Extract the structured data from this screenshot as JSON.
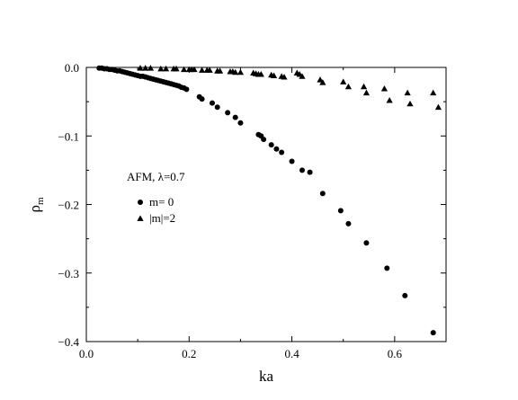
{
  "chart_data": {
    "type": "scatter",
    "title": "",
    "xlabel": "ka",
    "ylabel": "ρ",
    "ylabel_sub": "m",
    "xlim": [
      0.0,
      0.7
    ],
    "ylim": [
      -0.4,
      0.0
    ],
    "x_ticks": [
      0.0,
      0.2,
      0.4,
      0.6
    ],
    "x_tick_labels": [
      "0.0",
      "0.2",
      "0.4",
      "0.6"
    ],
    "y_ticks": [
      0.0,
      -0.1,
      -0.2,
      -0.3,
      -0.4
    ],
    "y_tick_labels": [
      "0.0",
      "−0.1",
      "−0.2",
      "−0.3",
      "−0.4"
    ],
    "grid": false,
    "legend_title": "AFM, λ=0.7",
    "legend_position": "middle-left",
    "series": [
      {
        "name": "m= 0",
        "marker": "circle",
        "color": "#000000",
        "x": [
          0.025,
          0.03,
          0.035,
          0.04,
          0.045,
          0.05,
          0.055,
          0.06,
          0.065,
          0.07,
          0.075,
          0.08,
          0.085,
          0.09,
          0.095,
          0.1,
          0.105,
          0.11,
          0.115,
          0.12,
          0.125,
          0.13,
          0.135,
          0.14,
          0.145,
          0.15,
          0.155,
          0.16,
          0.165,
          0.17,
          0.175,
          0.18,
          0.185,
          0.19,
          0.195,
          0.22,
          0.225,
          0.245,
          0.255,
          0.275,
          0.29,
          0.3,
          0.335,
          0.34,
          0.345,
          0.36,
          0.37,
          0.38,
          0.4,
          0.42,
          0.435,
          0.46,
          0.495,
          0.51,
          0.545,
          0.585,
          0.62,
          0.675
        ],
        "y": [
          -0.001,
          -0.001,
          -0.002,
          -0.002,
          -0.003,
          -0.003,
          -0.004,
          -0.005,
          -0.005,
          -0.006,
          -0.007,
          -0.008,
          -0.009,
          -0.01,
          -0.011,
          -0.012,
          -0.013,
          -0.013,
          -0.014,
          -0.015,
          -0.016,
          -0.017,
          -0.018,
          -0.019,
          -0.02,
          -0.021,
          -0.022,
          -0.023,
          -0.024,
          -0.025,
          -0.026,
          -0.027,
          -0.029,
          -0.03,
          -0.032,
          -0.043,
          -0.046,
          -0.052,
          -0.058,
          -0.066,
          -0.073,
          -0.081,
          -0.098,
          -0.1,
          -0.105,
          -0.113,
          -0.119,
          -0.124,
          -0.137,
          -0.15,
          -0.153,
          -0.184,
          -0.209,
          -0.228,
          -0.256,
          -0.293,
          -0.333,
          -0.387
        ]
      },
      {
        "name": "|m|=2",
        "marker": "triangle",
        "color": "#000000",
        "x": [
          0.105,
          0.115,
          0.125,
          0.145,
          0.155,
          0.17,
          0.175,
          0.19,
          0.2,
          0.205,
          0.21,
          0.225,
          0.235,
          0.24,
          0.255,
          0.26,
          0.28,
          0.285,
          0.29,
          0.3,
          0.325,
          0.33,
          0.335,
          0.34,
          0.36,
          0.365,
          0.38,
          0.385,
          0.41,
          0.415,
          0.42,
          0.455,
          0.46,
          0.5,
          0.51,
          0.54,
          0.545,
          0.58,
          0.59,
          0.625,
          0.63,
          0.675,
          0.685
        ],
        "y": [
          -0.001,
          -0.001,
          -0.001,
          -0.002,
          -0.002,
          -0.002,
          -0.002,
          -0.003,
          -0.003,
          -0.003,
          -0.003,
          -0.004,
          -0.004,
          -0.004,
          -0.005,
          -0.005,
          -0.006,
          -0.006,
          -0.007,
          -0.007,
          -0.008,
          -0.009,
          -0.01,
          -0.01,
          -0.011,
          -0.012,
          -0.013,
          -0.014,
          -0.008,
          -0.01,
          -0.013,
          -0.018,
          -0.022,
          -0.021,
          -0.028,
          -0.028,
          -0.037,
          -0.031,
          -0.048,
          -0.037,
          -0.053,
          -0.037,
          -0.058
        ]
      }
    ]
  }
}
